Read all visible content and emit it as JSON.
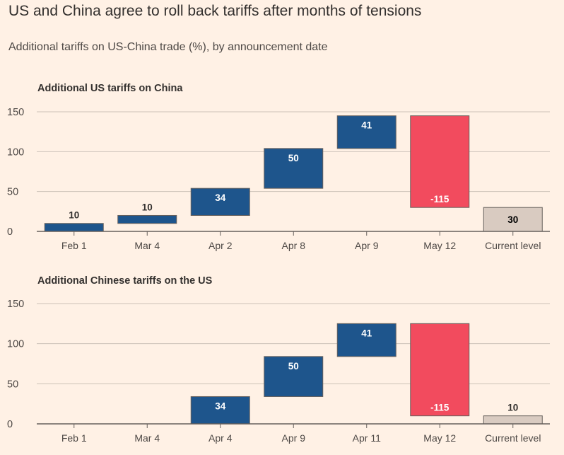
{
  "title": "US and China agree to roll back tariffs after months of tensions",
  "subtitle": "Additional tariffs on US-China trade (%), by announcement date",
  "colors": {
    "increase": "#1e558c",
    "decrease": "#f24b5e",
    "total": "#d9cbc1",
    "total_stroke": "#66605c",
    "background": "#fff1e5"
  },
  "chart_data": [
    {
      "type": "waterfall",
      "title": "Additional US tariffs on China",
      "categories": [
        "Feb 1",
        "Mar 4",
        "Apr 2",
        "Apr 8",
        "Apr 9",
        "May 12",
        "Current level"
      ],
      "values": [
        10,
        10,
        34,
        50,
        41,
        -115,
        30
      ],
      "labels": [
        "10",
        "10",
        "34",
        "50",
        "41",
        "-115",
        "30"
      ],
      "kinds": [
        "increase",
        "increase",
        "increase",
        "increase",
        "increase",
        "decrease",
        "total"
      ],
      "yticks": [
        "150",
        "100",
        "50",
        "0"
      ],
      "ylim": [
        0,
        150
      ]
    },
    {
      "type": "waterfall",
      "title": "Additional Chinese tariffs on the US",
      "categories": [
        "Feb 1",
        "Mar 4",
        "Apr 4",
        "Apr 9",
        "Apr 11",
        "May 12",
        "Current level"
      ],
      "values": [
        0,
        0,
        34,
        50,
        41,
        -115,
        10
      ],
      "labels": [
        "",
        "",
        "34",
        "50",
        "41",
        "-115",
        "10"
      ],
      "kinds": [
        "increase",
        "increase",
        "increase",
        "increase",
        "increase",
        "decrease",
        "total"
      ],
      "yticks": [
        "150",
        "100",
        "50",
        "0"
      ],
      "ylim": [
        0,
        150
      ]
    }
  ]
}
